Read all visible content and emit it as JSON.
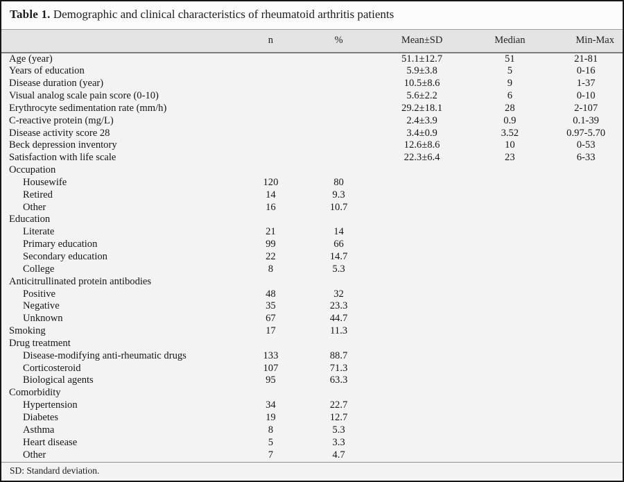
{
  "table": {
    "title_label": "Table 1.",
    "title_text": " Demographic and clinical characteristics of rheumatoid arthritis patients",
    "columns": {
      "label": "",
      "n": "n",
      "pct": "%",
      "mean_sd": "Mean±SD",
      "median": "Median",
      "min_max": "Min-Max"
    },
    "rows": [
      {
        "label": "Age (year)",
        "indent": 0,
        "n": "",
        "pct": "",
        "mean_sd": "51.1±12.7",
        "median": "51",
        "min_max": "21-81"
      },
      {
        "label": "Years of education",
        "indent": 0,
        "n": "",
        "pct": "",
        "mean_sd": "5.9±3.8",
        "median": "5",
        "min_max": "0-16"
      },
      {
        "label": "Disease duration (year)",
        "indent": 0,
        "n": "",
        "pct": "",
        "mean_sd": "10.5±8.6",
        "median": "9",
        "min_max": "1-37"
      },
      {
        "label": "Visual analog scale pain score (0-10)",
        "indent": 0,
        "n": "",
        "pct": "",
        "mean_sd": "5.6±2.2",
        "median": "6",
        "min_max": "0-10"
      },
      {
        "label": "Erythrocyte sedimentation rate (mm/h)",
        "indent": 0,
        "n": "",
        "pct": "",
        "mean_sd": "29.2±18.1",
        "median": "28",
        "min_max": "2-107"
      },
      {
        "label": "C-reactive protein (mg/L)",
        "indent": 0,
        "n": "",
        "pct": "",
        "mean_sd": "2.4±3.9",
        "median": "0.9",
        "min_max": "0.1-39"
      },
      {
        "label": "Disease activity score 28",
        "indent": 0,
        "n": "",
        "pct": "",
        "mean_sd": "3.4±0.9",
        "median": "3.52",
        "min_max": "0.97-5.70"
      },
      {
        "label": "Beck depression inventory",
        "indent": 0,
        "n": "",
        "pct": "",
        "mean_sd": "12.6±8.6",
        "median": "10",
        "min_max": "0-53"
      },
      {
        "label": "Satisfaction with life scale",
        "indent": 0,
        "n": "",
        "pct": "",
        "mean_sd": "22.3±6.4",
        "median": "23",
        "min_max": "6-33"
      },
      {
        "label": "Occupation",
        "indent": 0,
        "n": "",
        "pct": "",
        "mean_sd": "",
        "median": "",
        "min_max": ""
      },
      {
        "label": "Housewife",
        "indent": 1,
        "n": "120",
        "pct": "80",
        "mean_sd": "",
        "median": "",
        "min_max": ""
      },
      {
        "label": "Retired",
        "indent": 1,
        "n": "14",
        "pct": "9.3",
        "mean_sd": "",
        "median": "",
        "min_max": ""
      },
      {
        "label": "Other",
        "indent": 1,
        "n": "16",
        "pct": "10.7",
        "mean_sd": "",
        "median": "",
        "min_max": ""
      },
      {
        "label": "Education",
        "indent": 0,
        "n": "",
        "pct": "",
        "mean_sd": "",
        "median": "",
        "min_max": ""
      },
      {
        "label": "Literate",
        "indent": 1,
        "n": "21",
        "pct": "14",
        "mean_sd": "",
        "median": "",
        "min_max": ""
      },
      {
        "label": "Primary education",
        "indent": 1,
        "n": "99",
        "pct": "66",
        "mean_sd": "",
        "median": "",
        "min_max": ""
      },
      {
        "label": "Secondary education",
        "indent": 1,
        "n": "22",
        "pct": "14.7",
        "mean_sd": "",
        "median": "",
        "min_max": ""
      },
      {
        "label": "College",
        "indent": 1,
        "n": "8",
        "pct": "5.3",
        "mean_sd": "",
        "median": "",
        "min_max": ""
      },
      {
        "label": "Anticitrullinated protein antibodies",
        "indent": 0,
        "n": "",
        "pct": "",
        "mean_sd": "",
        "median": "",
        "min_max": ""
      },
      {
        "label": "Positive",
        "indent": 1,
        "n": "48",
        "pct": "32",
        "mean_sd": "",
        "median": "",
        "min_max": ""
      },
      {
        "label": "Negative",
        "indent": 1,
        "n": "35",
        "pct": "23.3",
        "mean_sd": "",
        "median": "",
        "min_max": ""
      },
      {
        "label": "Unknown",
        "indent": 1,
        "n": "67",
        "pct": "44.7",
        "mean_sd": "",
        "median": "",
        "min_max": ""
      },
      {
        "label": "Smoking",
        "indent": 0,
        "n": "17",
        "pct": "11.3",
        "mean_sd": "",
        "median": "",
        "min_max": ""
      },
      {
        "label": "Drug treatment",
        "indent": 0,
        "n": "",
        "pct": "",
        "mean_sd": "",
        "median": "",
        "min_max": ""
      },
      {
        "label": "Disease-modifying anti-rheumatic drugs",
        "indent": 1,
        "n": "133",
        "pct": "88.7",
        "mean_sd": "",
        "median": "",
        "min_max": ""
      },
      {
        "label": "Corticosteroid",
        "indent": 1,
        "n": "107",
        "pct": "71.3",
        "mean_sd": "",
        "median": "",
        "min_max": ""
      },
      {
        "label": "Biological agents",
        "indent": 1,
        "n": "95",
        "pct": "63.3",
        "mean_sd": "",
        "median": "",
        "min_max": ""
      },
      {
        "label": "Comorbidity",
        "indent": 0,
        "n": "",
        "pct": "",
        "mean_sd": "",
        "median": "",
        "min_max": ""
      },
      {
        "label": "Hypertension",
        "indent": 1,
        "n": "34",
        "pct": "22.7",
        "mean_sd": "",
        "median": "",
        "min_max": ""
      },
      {
        "label": "Diabetes",
        "indent": 1,
        "n": "19",
        "pct": "12.7",
        "mean_sd": "",
        "median": "",
        "min_max": ""
      },
      {
        "label": "Asthma",
        "indent": 1,
        "n": "8",
        "pct": "5.3",
        "mean_sd": "",
        "median": "",
        "min_max": ""
      },
      {
        "label": "Heart disease",
        "indent": 1,
        "n": "5",
        "pct": "3.3",
        "mean_sd": "",
        "median": "",
        "min_max": ""
      },
      {
        "label": "Other",
        "indent": 1,
        "n": "7",
        "pct": "4.7",
        "mean_sd": "",
        "median": "",
        "min_max": ""
      }
    ],
    "footnote": "SD: Standard deviation."
  },
  "colors": {
    "outer_border": "#161616",
    "header_band_bg": "#e4e4e4",
    "body_bg": "#f3f3f3",
    "title_bg": "#fcfcfc",
    "text": "#151515"
  }
}
